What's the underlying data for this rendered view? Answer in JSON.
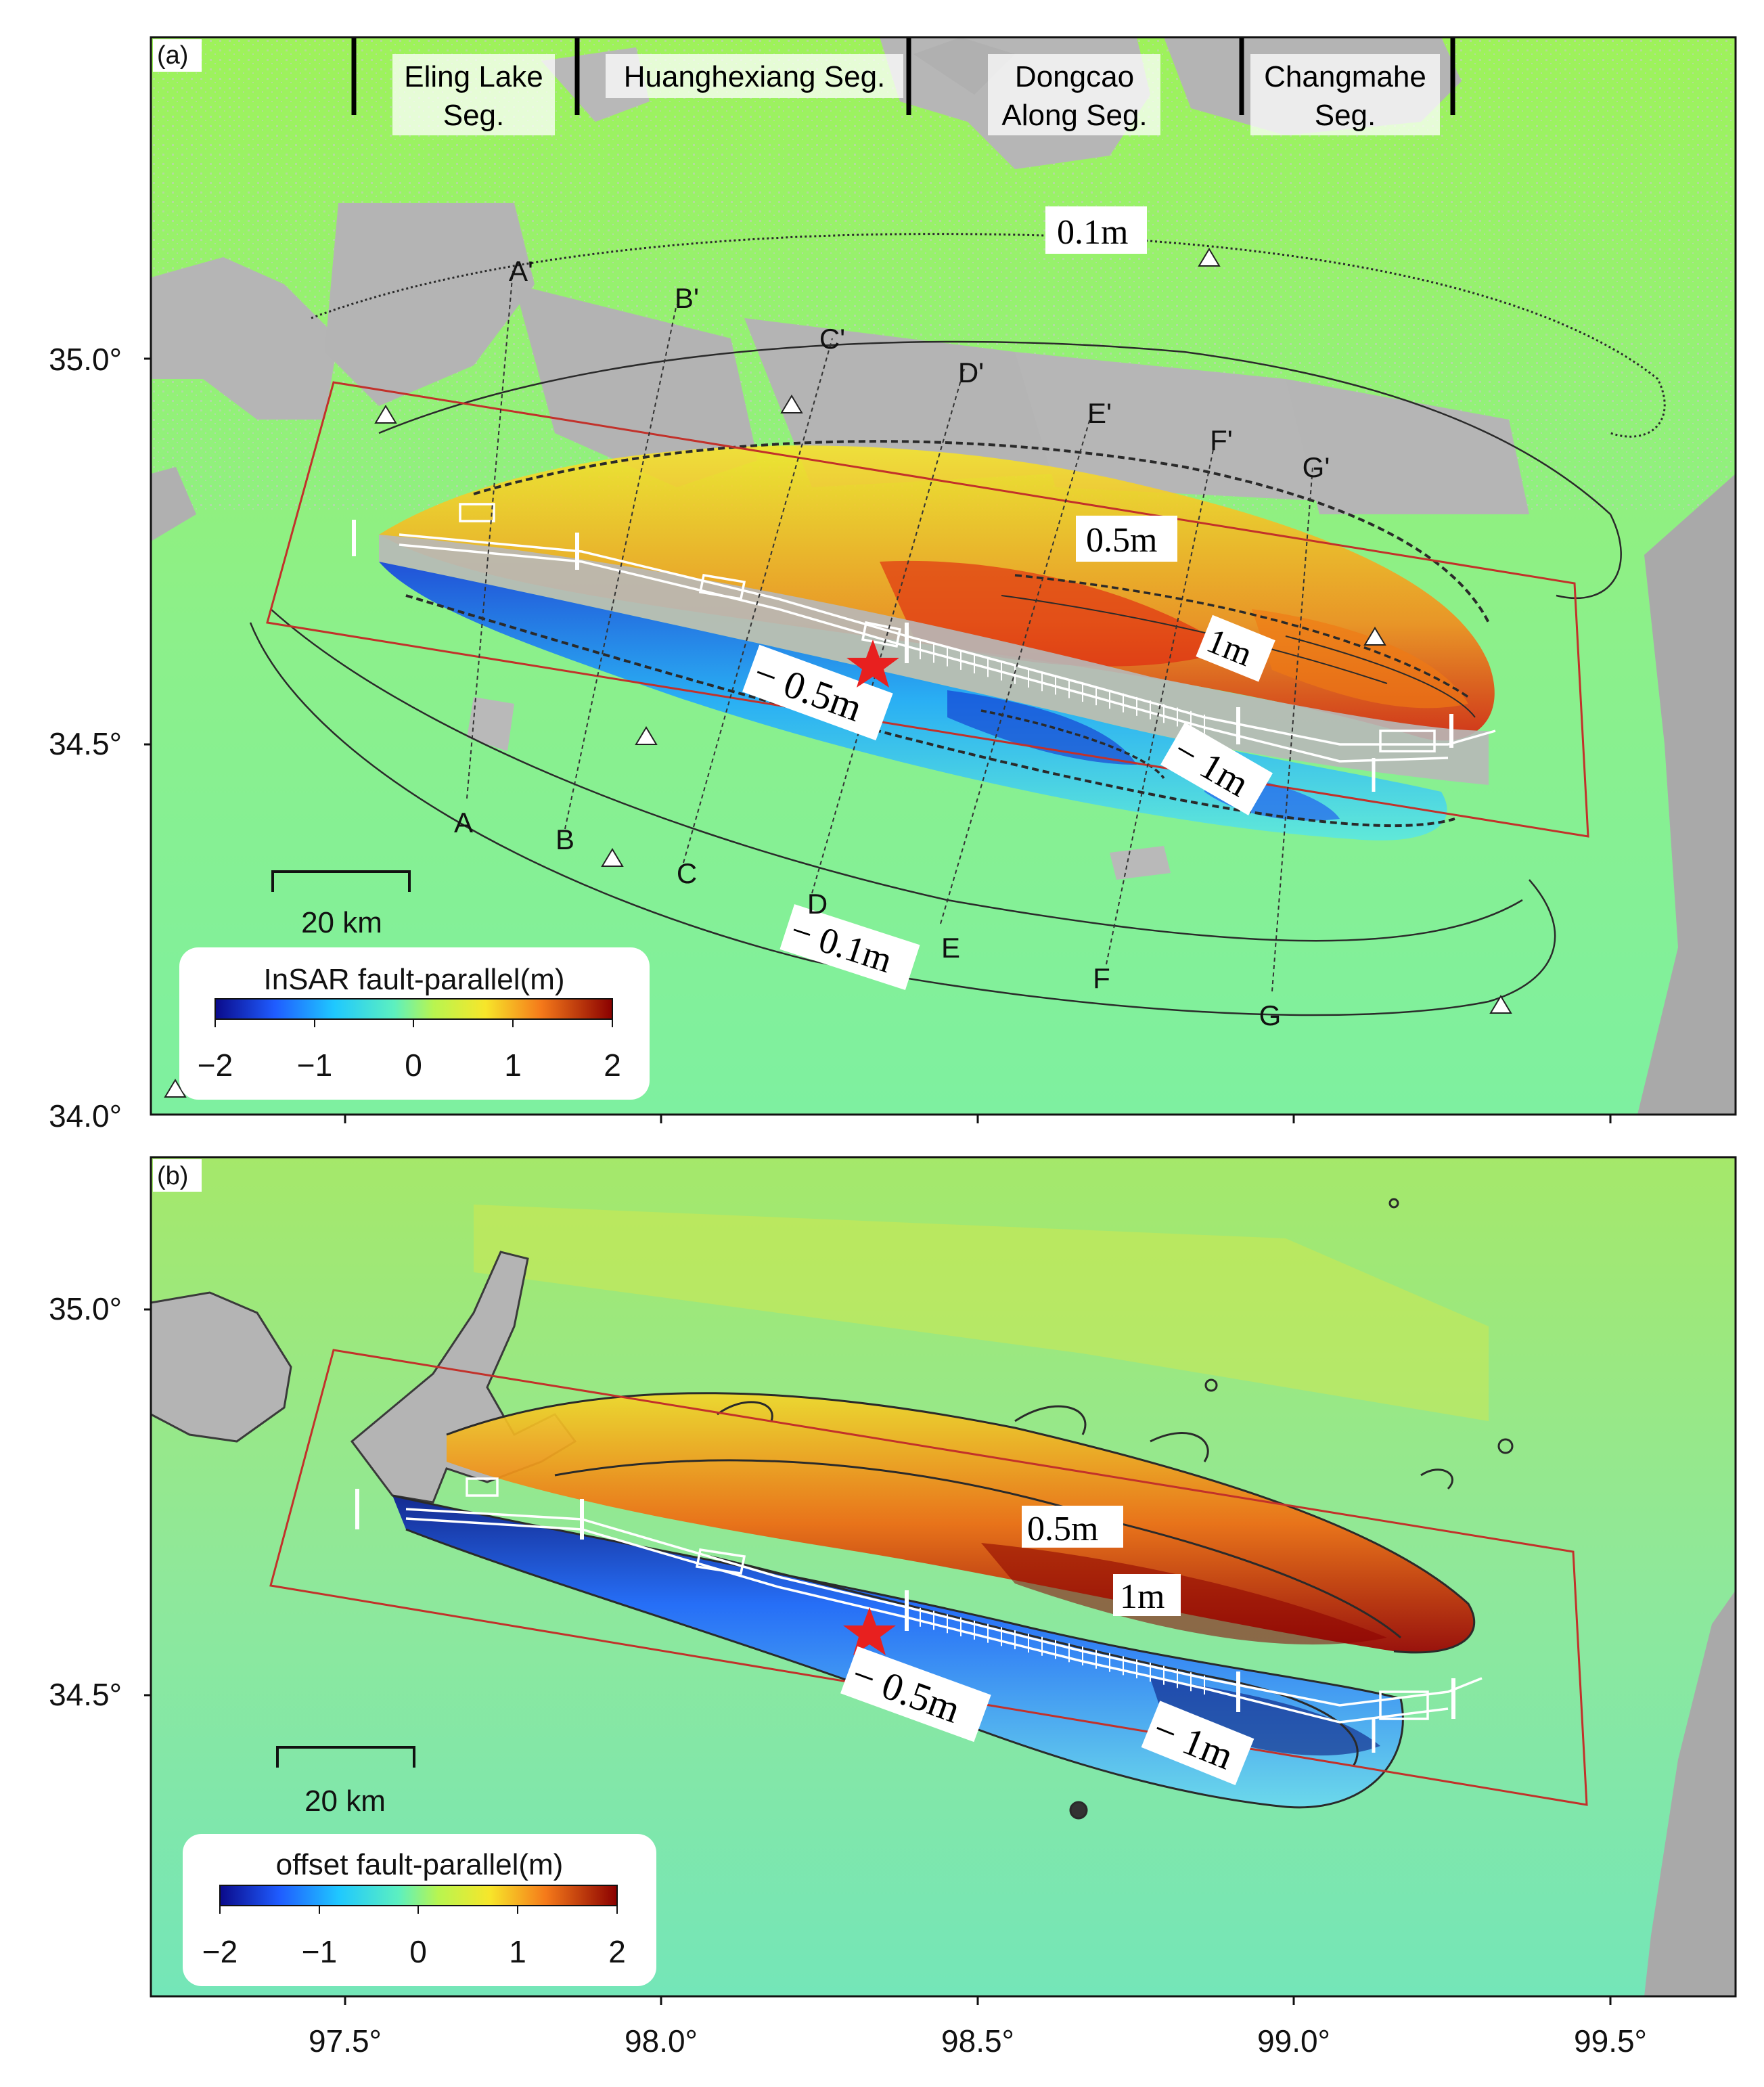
{
  "panels": [
    {
      "id": "a",
      "label": "(a)",
      "segments": [
        {
          "name_line1": "Eling Lake",
          "name_line2": "Seg."
        },
        {
          "name_line1": "Huanghexiang Seg.",
          "name_line2": ""
        },
        {
          "name_line1": "Dongcao",
          "name_line2": "Along Seg."
        },
        {
          "name_line1": "Changmahe",
          "name_line2": "Seg."
        }
      ],
      "contour_labels": [
        "0.1m",
        "0.5m",
        "1m",
        "− 0.5m",
        "− 1m",
        "− 0.1m"
      ],
      "profile_start_labels": [
        "A",
        "B",
        "C",
        "D",
        "E",
        "F",
        "G"
      ],
      "profile_end_labels": [
        "A'",
        "B'",
        "C'",
        "D'",
        "E'",
        "F'",
        "G'"
      ],
      "scale_bar_label": "20 km",
      "colorbar_title": "InSAR fault-parallel(m)",
      "colorbar_ticks": [
        "−2",
        "−1",
        "0",
        "1",
        "2"
      ],
      "lat_ticks": [
        "35.0°",
        "34.5°",
        "34.0°"
      ]
    },
    {
      "id": "b",
      "label": "(b)",
      "contour_labels": [
        "0.5m",
        "1m",
        "− 0.5m",
        "− 1m"
      ],
      "scale_bar_label": "20 km",
      "colorbar_title": "offset fault-parallel(m)",
      "colorbar_ticks": [
        "−2",
        "−1",
        "0",
        "1",
        "2"
      ],
      "lat_ticks": [
        "35.0°",
        "34.5°"
      ]
    }
  ],
  "lon_ticks": [
    "97.5°",
    "98.0°",
    "98.5°",
    "99.0°",
    "99.5°"
  ],
  "colors": {
    "background_field": "#8ef27a",
    "topo_gray": "#b4b4b4",
    "fault_box": "#c2312a",
    "epicenter": "#e8201f",
    "positive_max": "#b00000",
    "negative_max": "#10108a"
  },
  "icons": {
    "epicenter": "red-star",
    "gps_station": "white-triangle"
  }
}
